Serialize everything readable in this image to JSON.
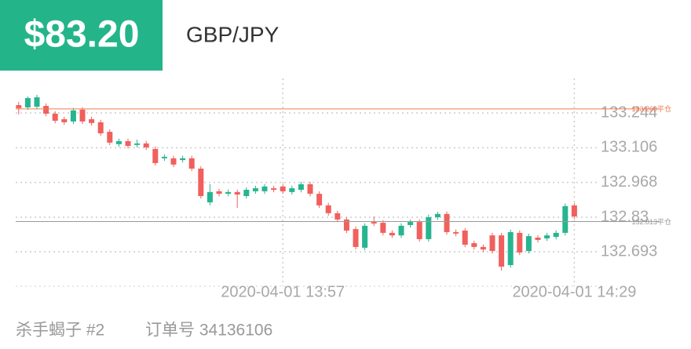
{
  "header": {
    "price": "$83.20"
  },
  "chart_data": {
    "type": "candlestick",
    "title": "GBP/JPY",
    "x": [
      "2020-04-01 13:28",
      "2020-04-01 13:29",
      "2020-04-01 13:30",
      "2020-04-01 13:31",
      "2020-04-01 13:32",
      "2020-04-01 13:33",
      "2020-04-01 13:34",
      "2020-04-01 13:35",
      "2020-04-01 13:36",
      "2020-04-01 13:37",
      "2020-04-01 13:38",
      "2020-04-01 13:39",
      "2020-04-01 13:40",
      "2020-04-01 13:41",
      "2020-04-01 13:42",
      "2020-04-01 13:43",
      "2020-04-01 13:44",
      "2020-04-01 13:45",
      "2020-04-01 13:46",
      "2020-04-01 13:47",
      "2020-04-01 13:48",
      "2020-04-01 13:49",
      "2020-04-01 13:50",
      "2020-04-01 13:51",
      "2020-04-01 13:52",
      "2020-04-01 13:53",
      "2020-04-01 13:54",
      "2020-04-01 13:55",
      "2020-04-01 13:56",
      "2020-04-01 13:57",
      "2020-04-01 13:58",
      "2020-04-01 13:59",
      "2020-04-01 14:00",
      "2020-04-01 14:01",
      "2020-04-01 14:02",
      "2020-04-01 14:03",
      "2020-04-01 14:04",
      "2020-04-01 14:05",
      "2020-04-01 14:06",
      "2020-04-01 14:07",
      "2020-04-01 14:08",
      "2020-04-01 14:09",
      "2020-04-01 14:10",
      "2020-04-01 14:11",
      "2020-04-01 14:12",
      "2020-04-01 14:13",
      "2020-04-01 14:14",
      "2020-04-01 14:15",
      "2020-04-01 14:16",
      "2020-04-01 14:17",
      "2020-04-01 14:18",
      "2020-04-01 14:19",
      "2020-04-01 14:20",
      "2020-04-01 14:21",
      "2020-04-01 14:22",
      "2020-04-01 14:23",
      "2020-04-01 14:24",
      "2020-04-01 14:25",
      "2020-04-01 14:26",
      "2020-04-01 14:27",
      "2020-04-01 14:28",
      "2020-04-01 14:29"
    ],
    "open": [
      133.275,
      133.266,
      133.269,
      133.272,
      133.241,
      133.219,
      133.21,
      133.257,
      133.219,
      133.207,
      133.169,
      133.12,
      133.132,
      133.117,
      133.123,
      133.101,
      133.064,
      133.064,
      133.057,
      133.064,
      133.023,
      132.889,
      132.933,
      132.923,
      132.93,
      132.914,
      132.933,
      132.933,
      132.945,
      132.952,
      132.93,
      132.939,
      132.961,
      132.923,
      132.877,
      132.846,
      132.821,
      132.783,
      132.709,
      132.811,
      132.808,
      132.768,
      132.758,
      132.799,
      132.811,
      132.743,
      132.83,
      132.843,
      132.771,
      132.777,
      132.727,
      132.712,
      132.758,
      132.758,
      132.64,
      132.768,
      132.696,
      132.749,
      132.746,
      132.752,
      132.768,
      132.877
    ],
    "high": [
      133.288,
      133.31,
      133.316,
      133.282,
      133.251,
      133.229,
      133.264,
      133.267,
      133.229,
      133.217,
      133.179,
      133.142,
      133.142,
      133.138,
      133.133,
      133.111,
      133.08,
      133.074,
      133.074,
      133.074,
      133.033,
      132.961,
      132.943,
      132.94,
      132.94,
      132.949,
      132.955,
      132.962,
      132.955,
      132.962,
      132.955,
      132.971,
      132.971,
      132.933,
      132.887,
      132.856,
      132.831,
      132.793,
      132.806,
      132.833,
      132.818,
      132.778,
      132.806,
      132.821,
      132.821,
      132.84,
      132.852,
      132.853,
      132.781,
      132.787,
      132.737,
      132.722,
      132.768,
      132.768,
      132.781,
      132.778,
      132.765,
      132.759,
      132.768,
      132.778,
      132.884,
      132.887
    ],
    "low": [
      133.238,
      133.256,
      133.259,
      133.231,
      133.203,
      133.197,
      133.2,
      133.2,
      133.194,
      133.153,
      133.116,
      133.11,
      133.103,
      133.107,
      133.097,
      133.035,
      133.054,
      133.029,
      133.047,
      133.013,
      132.904,
      132.877,
      132.913,
      132.913,
      132.867,
      132.904,
      132.923,
      132.923,
      132.929,
      132.923,
      132.92,
      132.929,
      132.913,
      132.867,
      132.836,
      132.811,
      132.767,
      132.702,
      132.699,
      132.795,
      132.758,
      132.748,
      132.748,
      132.789,
      132.733,
      132.733,
      132.82,
      132.761,
      132.755,
      132.711,
      132.702,
      132.692,
      132.686,
      132.618,
      132.63,
      132.68,
      132.686,
      132.73,
      132.736,
      132.742,
      132.758,
      132.823
    ],
    "close": [
      133.263,
      133.303,
      133.306,
      133.241,
      133.213,
      133.207,
      133.254,
      133.21,
      133.204,
      133.163,
      133.126,
      133.132,
      133.113,
      133.123,
      133.107,
      133.045,
      133.07,
      133.039,
      133.064,
      133.023,
      132.914,
      132.93,
      132.923,
      132.93,
      132.92,
      132.939,
      132.945,
      132.952,
      132.939,
      132.933,
      132.945,
      132.961,
      132.923,
      132.877,
      132.846,
      132.821,
      132.777,
      132.712,
      132.796,
      132.805,
      132.768,
      132.758,
      132.796,
      132.811,
      132.743,
      132.83,
      132.843,
      132.771,
      132.765,
      132.721,
      132.712,
      132.702,
      132.696,
      132.634,
      132.771,
      132.69,
      132.755,
      132.74,
      132.758,
      132.768,
      132.874,
      132.833
    ],
    "up_color": "#26b58f",
    "down_color": "#f0605d",
    "ylim": [
      132.556,
      133.381
    ],
    "yticks": [
      132.693,
      132.83,
      132.968,
      133.106,
      133.244
    ],
    "xticks": [
      "2020-04-01 13:57",
      "2020-04-01 14:29"
    ],
    "grid": true,
    "reference_lines": [
      {
        "value": 133.26,
        "label": "133.260平仓",
        "color": "#f07a50"
      },
      {
        "value": 132.813,
        "label": "132.813平仓",
        "color": "#9a9a9a"
      }
    ]
  },
  "footer": {
    "name": "杀手蝎子 #2",
    "order": "订单号 34136106"
  }
}
